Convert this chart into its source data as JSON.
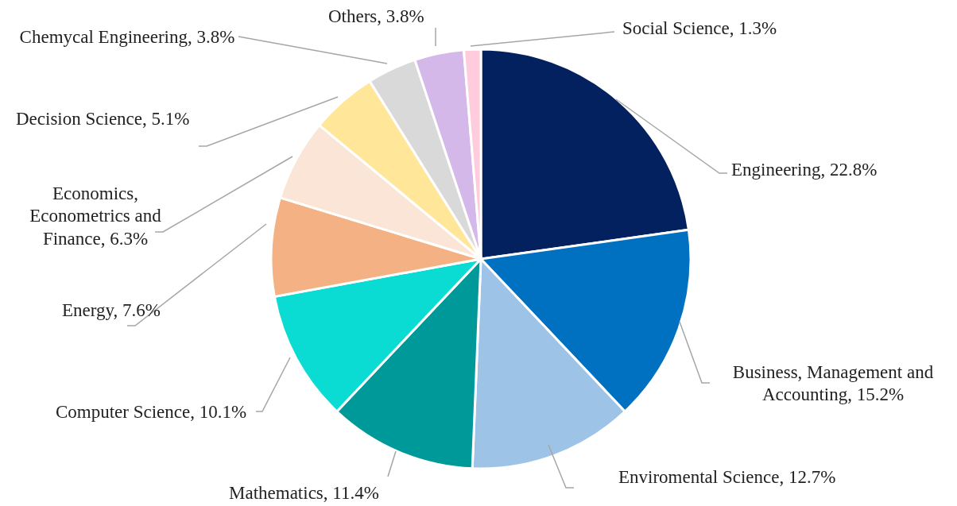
{
  "chart_data": {
    "type": "pie",
    "categories": [
      "Engineering",
      "Business, Management and Accounting",
      "Enviromental Science",
      "Mathematics",
      "Computer Science",
      "Energy",
      "Economics, Econometrics and Finance",
      "Decision Science",
      "Chemycal Engineering",
      "Others",
      "Social Science"
    ],
    "values": [
      22.8,
      15.2,
      12.7,
      11.4,
      10.1,
      7.6,
      6.3,
      5.1,
      3.8,
      3.8,
      1.3
    ],
    "value_labels": [
      "22.8%",
      "15.2%",
      "12.7%",
      "11.4%",
      "10.1%",
      "7.6%",
      "6.3%",
      "5.1%",
      "3.8%",
      "3.8%",
      "1.3%"
    ],
    "colors": [
      "#03215f",
      "#0070c0",
      "#9dc3e6",
      "#009999",
      "#0adcd4",
      "#f4b183",
      "#fbe5d6",
      "#ffe699",
      "#d9d9d9",
      "#d5b8ea",
      "#ffccdd"
    ],
    "legend": false
  }
}
